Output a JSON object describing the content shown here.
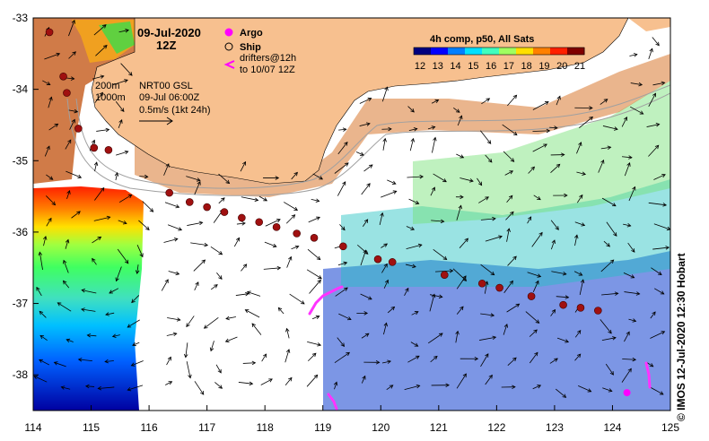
{
  "title": {
    "date": "09-Jul-2020",
    "time": "12Z"
  },
  "legend": {
    "argo_label": "Argo",
    "ship_label": "Ship",
    "drifter_label_line1": "drifters@12h",
    "drifter_label_line2": "to 10/07 12Z",
    "argo_color": "#ff00ff",
    "drifter_color": "#ff33ff"
  },
  "info": {
    "depth_200": "200m",
    "depth_1000": "1000m",
    "altimetry": "NRT00 GSL",
    "altimetry_time": "09-Jul 06:00Z",
    "scale_label": "0.5m/s (1kt 24h)"
  },
  "colorbar": {
    "title": "4h comp, p50, All Sats",
    "tick_labels": [
      "12",
      "13",
      "14",
      "15",
      "16",
      "17",
      "18",
      "19",
      "20",
      "21"
    ],
    "colors": [
      "#00007f",
      "#0000ff",
      "#007fff",
      "#00e0ff",
      "#40ffbf",
      "#a0ff60",
      "#ffe000",
      "#ff8000",
      "#ff2000",
      "#800000"
    ]
  },
  "axes": {
    "x_ticks": [
      "114",
      "115",
      "116",
      "117",
      "118",
      "119",
      "120",
      "121",
      "122",
      "123",
      "124",
      "125"
    ],
    "y_ticks": [
      "-33",
      "-34",
      "-35",
      "-36",
      "-37",
      "-38"
    ],
    "lon_range": [
      114,
      125
    ],
    "lat_range": [
      -38.5,
      -33
    ]
  },
  "ship_track": [
    [
      114.28,
      -33.2
    ],
    [
      114.52,
      -33.82
    ],
    [
      114.58,
      -34.05
    ],
    [
      114.78,
      -34.55
    ],
    [
      115.05,
      -34.82
    ],
    [
      115.3,
      -34.85
    ],
    [
      116.35,
      -35.45
    ],
    [
      116.7,
      -35.58
    ],
    [
      117.0,
      -35.65
    ],
    [
      117.3,
      -35.72
    ],
    [
      117.6,
      -35.8
    ],
    [
      117.9,
      -35.86
    ],
    [
      118.2,
      -35.93
    ],
    [
      118.55,
      -36.02
    ],
    [
      118.85,
      -36.08
    ],
    [
      119.35,
      -36.2
    ],
    [
      119.95,
      -36.38
    ],
    [
      120.2,
      -36.42
    ],
    [
      121.1,
      -36.6
    ],
    [
      121.75,
      -36.72
    ],
    [
      122.05,
      -36.78
    ],
    [
      122.6,
      -36.9
    ],
    [
      123.15,
      -37.02
    ],
    [
      123.45,
      -37.06
    ],
    [
      123.75,
      -37.1
    ]
  ],
  "argo_floats": [
    [
      124.25,
      -38.25
    ]
  ],
  "credit": "© IMOS 12-Jul-2020 12:30 Hobart"
}
